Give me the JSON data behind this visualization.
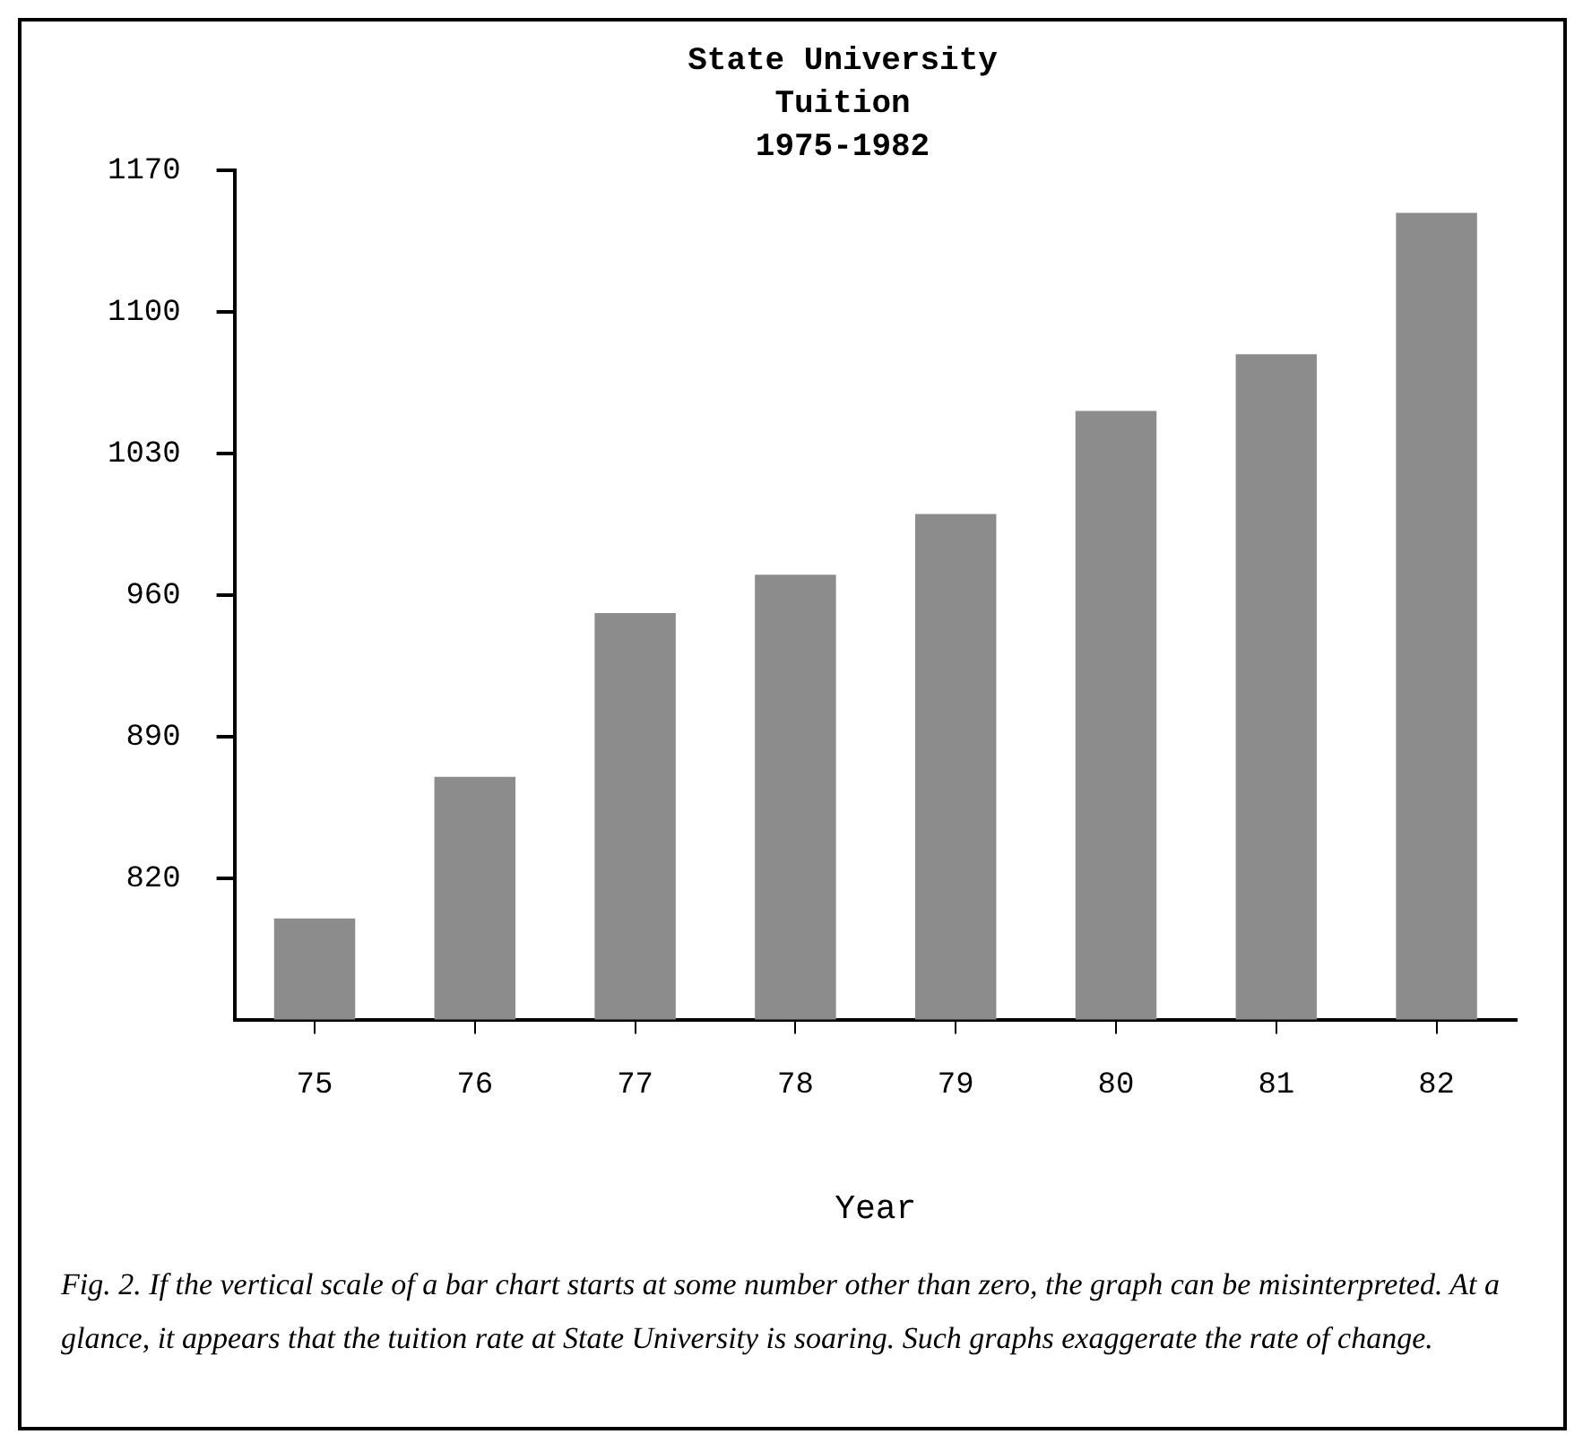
{
  "chart_data": {
    "type": "bar",
    "title": [
      "State University",
      "Tuition",
      "1975-1982"
    ],
    "xlabel": "Year",
    "categories": [
      "75",
      "76",
      "77",
      "78",
      "79",
      "80",
      "81",
      "82"
    ],
    "values": [
      800,
      870,
      951,
      970,
      1000,
      1051,
      1079,
      1149
    ],
    "color": "#8c8c8c",
    "ylim": [
      750,
      1170
    ],
    "yticks": [
      820,
      890,
      960,
      1030,
      1100,
      1170
    ],
    "annotations": [
      "Fig. 2. If the vertical scale of a bar chart starts at some number other than zero, the graph can be misinterpreted. At a glance, it appears that the tuition rate at State University is soaring. Such graphs exaggerate the rate of change."
    ]
  }
}
